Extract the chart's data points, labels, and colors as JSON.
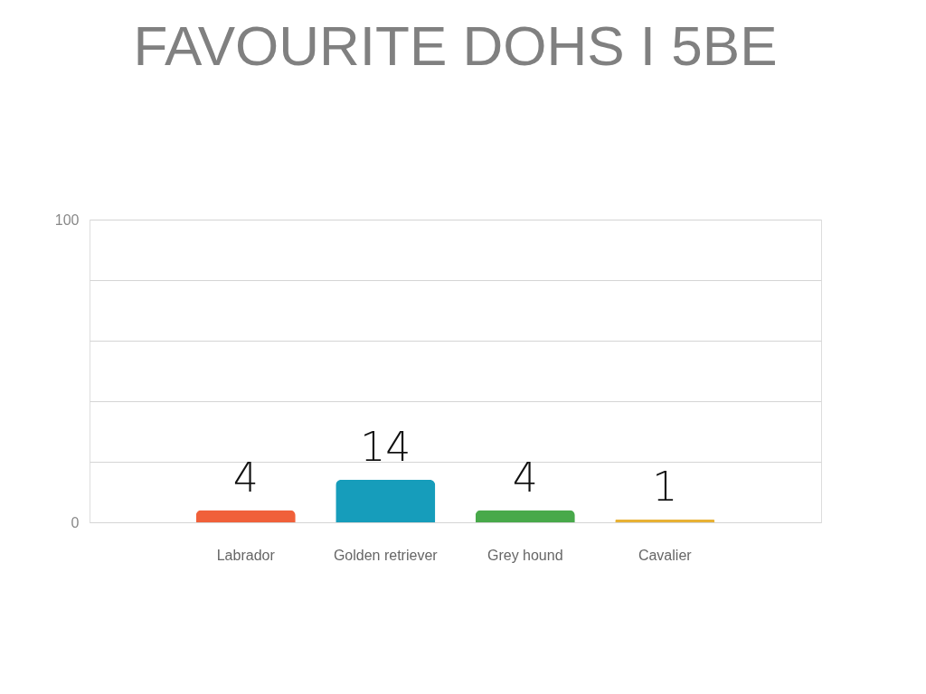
{
  "chart_data": {
    "type": "bar",
    "title": "FAVOURITE DOHS I 5BE",
    "categories": [
      "Labrador",
      "Golden retriever",
      "Grey hound",
      "Cavalier"
    ],
    "values": [
      4,
      14,
      4,
      1
    ],
    "colors": [
      "#f0603a",
      "#169dbb",
      "#48a94a",
      "#e8b134"
    ],
    "ylim": [
      0,
      100
    ],
    "yticks": [
      0,
      {
        "value": 20,
        "label": null
      },
      {
        "value": 40,
        "label": null
      },
      {
        "value": 60,
        "label": null
      },
      {
        "value": 80,
        "label": null
      },
      100
    ],
    "grid": "y",
    "data_labels": true
  }
}
